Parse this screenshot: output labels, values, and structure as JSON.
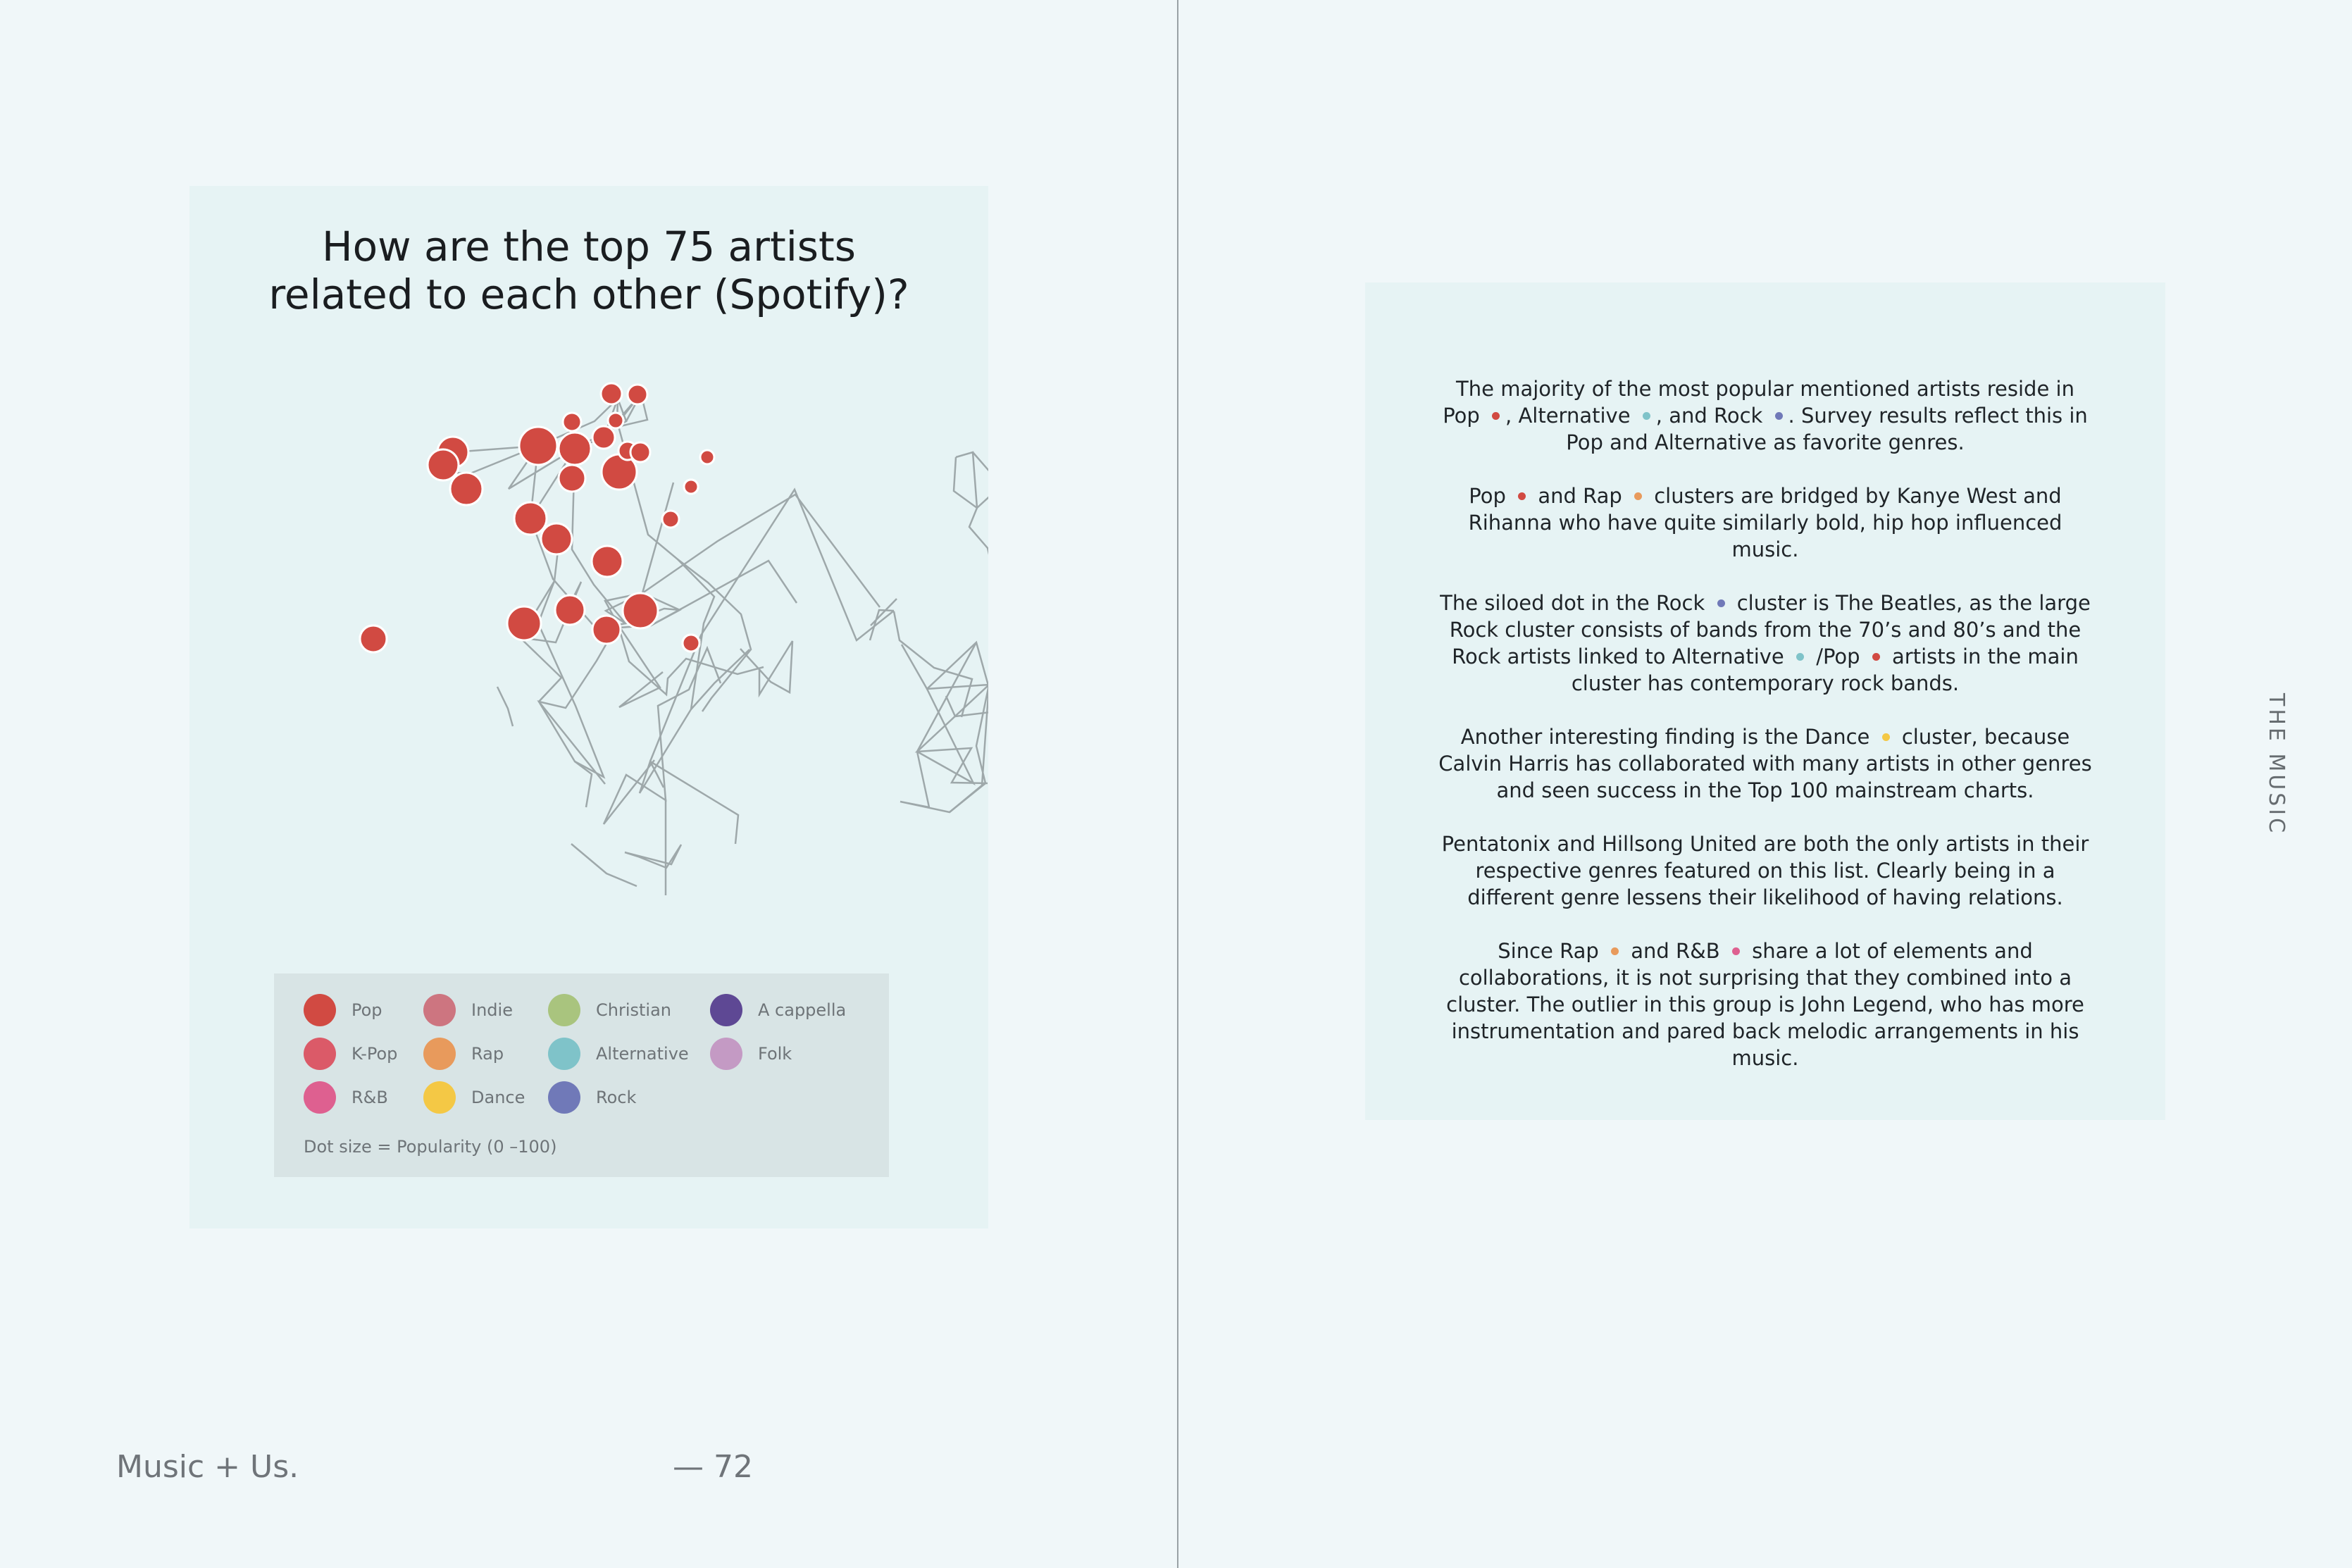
{
  "left_page": {
    "chart_title_line1": "How are the top 75 artists",
    "chart_title_line2": "related to each other (Spotify)?",
    "legend": [
      {
        "label": "Pop",
        "color": "#d14a42"
      },
      {
        "label": "K-Pop",
        "color": "#db5a68"
      },
      {
        "label": "R&B",
        "color": "#de6090"
      },
      {
        "label": "Indie",
        "color": "#cd7580"
      },
      {
        "label": "Rap",
        "color": "#e89a5c"
      },
      {
        "label": "Dance",
        "color": "#f4c845"
      },
      {
        "label": "Christian",
        "color": "#a9c47e"
      },
      {
        "label": "Alternative",
        "color": "#7fc3c9"
      },
      {
        "label": "Rock",
        "color": "#7079b8"
      },
      {
        "label": "A cappella",
        "color": "#5e4894"
      },
      {
        "label": "Folk",
        "color": "#c49ac4"
      }
    ],
    "legend_note": "Dot size = Popularity (0 –100)",
    "footer_title": "Music + Us.",
    "footer_page": "— 72"
  },
  "right_page": {
    "section_label": "THE MUSIC",
    "paragraphs": [
      [
        "The majority of the most popular mentioned artists reside in Pop ",
        {
          "dot": "#d14a42"
        },
        ", Alternative ",
        {
          "dot": "#7fc3c9"
        },
        ", and Rock ",
        {
          "dot": "#7079b8"
        },
        ". Survey results reflect this in Pop and Alternative as favorite genres."
      ],
      [
        "Pop ",
        {
          "dot": "#d14a42"
        },
        " and Rap ",
        {
          "dot": "#e89a5c"
        },
        " clusters are bridged by Kanye West and Rihanna who have quite similarly bold, hip hop influenced music."
      ],
      [
        "The siloed dot in the Rock ",
        {
          "dot": "#7079b8"
        },
        " cluster is The Beatles, as the large Rock cluster consists of bands from the 70’s and 80’s and the Rock artists linked to Alternative ",
        {
          "dot": "#7fc3c9"
        },
        " /Pop ",
        {
          "dot": "#d14a42"
        },
        " artists in the main cluster has contemporary rock bands."
      ],
      [
        "Another interesting finding is the Dance ",
        {
          "dot": "#f4c845"
        },
        " cluster, because Calvin Harris has collaborated with many artists in other genres and seen success in the Top 100 mainstream charts."
      ],
      [
        "Pentatonix and Hillsong United are both the only artists in their respective genres featured on this list. Clearly being in a different genre lessens their likelihood of having relations."
      ],
      [
        "Since Rap ",
        {
          "dot": "#e89a5c"
        },
        " and R&B ",
        {
          "dot": "#de6090"
        },
        " share a lot of elements and collaborations, it is not surprising that they combined into a cluster. The outlier in this group is John Legend, who has more instrumentation and pared back melodic arrangements in his music."
      ]
    ]
  }
}
